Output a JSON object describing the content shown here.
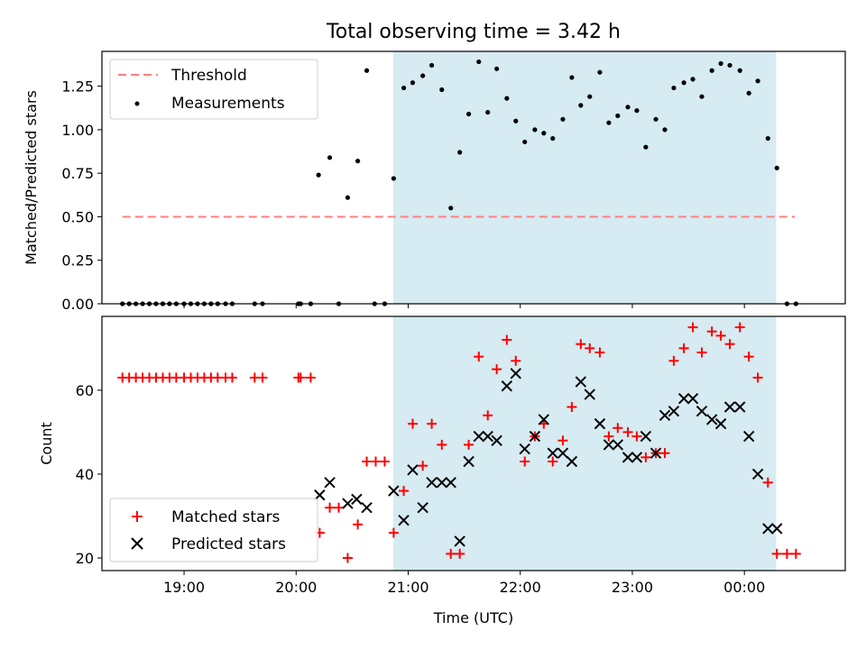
{
  "chart_data": [
    {
      "type": "scatter",
      "title": "Total observing time = 3.42 h",
      "xlabel": "",
      "ylabel": "Matched/Predicted stars",
      "xlim": [
        18.267,
        24.9
      ],
      "ylim": [
        0,
        1.45
      ],
      "yticks": [
        0,
        0.25,
        0.5,
        0.75,
        1.0,
        1.25
      ],
      "ytick_labels": [
        "0.00",
        "0.25",
        "0.50",
        "0.75",
        "1.00",
        "1.25"
      ],
      "xticks": [
        19,
        20,
        21,
        22,
        23,
        24
      ],
      "shaded_span": [
        20.867,
        24.283
      ],
      "threshold": {
        "label": "Threshold",
        "value": 0.5,
        "x": [
          18.45,
          24.45
        ],
        "color": "#ff7f7f"
      },
      "legend": {
        "position": "top-left",
        "entries": [
          "Threshold",
          "Measurements"
        ]
      },
      "series": [
        {
          "name": "Measurements",
          "color": "#000000",
          "marker": "dot",
          "x": [
            18.45,
            18.51,
            18.57,
            18.63,
            18.69,
            18.75,
            18.81,
            18.87,
            18.93,
            19.0,
            19.06,
            19.12,
            19.18,
            19.24,
            19.3,
            19.37,
            19.43,
            19.63,
            19.7,
            20.02,
            20.04,
            20.13,
            20.38,
            20.2,
            20.3,
            20.46,
            20.55,
            20.63,
            20.7,
            20.79,
            20.87,
            20.96,
            21.04,
            21.13,
            21.21,
            21.3,
            21.38,
            21.46,
            21.54,
            21.63,
            21.71,
            21.79,
            21.88,
            21.96,
            22.04,
            22.13,
            22.21,
            22.29,
            22.38,
            22.46,
            22.54,
            22.62,
            22.71,
            22.79,
            22.87,
            22.96,
            23.04,
            23.12,
            23.21,
            23.29,
            23.37,
            23.46,
            23.54,
            23.62,
            23.71,
            23.79,
            23.87,
            23.96,
            24.04,
            24.12,
            24.21,
            24.29,
            24.38,
            24.46
          ],
          "y": [
            0,
            0,
            0,
            0,
            0,
            0,
            0,
            0,
            0,
            0,
            0,
            0,
            0,
            0,
            0,
            0,
            0,
            0,
            0,
            0,
            0,
            0,
            0,
            0.74,
            0.84,
            0.61,
            0.82,
            1.34,
            0,
            0,
            0.72,
            1.24,
            1.27,
            1.31,
            1.37,
            1.23,
            0.55,
            0.87,
            1.09,
            1.39,
            1.1,
            1.35,
            1.18,
            1.05,
            0.93,
            1.0,
            0.98,
            0.95,
            1.06,
            1.3,
            1.14,
            1.19,
            1.33,
            1.04,
            1.08,
            1.13,
            1.11,
            0.9,
            1.06,
            1.0,
            1.24,
            1.27,
            1.29,
            1.19,
            1.34,
            1.38,
            1.37,
            1.34,
            1.21,
            1.28,
            0.95,
            0.78,
            0,
            0
          ]
        }
      ]
    },
    {
      "type": "scatter",
      "title": "",
      "xlabel": "Time (UTC)",
      "ylabel": "Count",
      "xlim": [
        18.267,
        24.9
      ],
      "ylim": [
        17,
        77.6
      ],
      "yticks": [
        20,
        40,
        60
      ],
      "ytick_labels": [
        "20",
        "40",
        "60"
      ],
      "xticks": [
        19,
        20,
        21,
        22,
        23,
        24
      ],
      "xtick_labels": [
        "19:00",
        "20:00",
        "21:00",
        "22:00",
        "23:00",
        "00:00"
      ],
      "shaded_span": [
        20.867,
        24.283
      ],
      "legend": {
        "position": "lower-left",
        "entries": [
          "Matched stars",
          "Predicted stars"
        ]
      },
      "series": [
        {
          "name": "Matched stars",
          "color": "#ff0000",
          "marker": "plus",
          "x": [
            18.45,
            18.51,
            18.57,
            18.63,
            18.69,
            18.75,
            18.81,
            18.87,
            18.93,
            19.0,
            19.06,
            19.12,
            19.18,
            19.24,
            19.3,
            19.37,
            19.43,
            19.63,
            19.7,
            20.02,
            20.04,
            20.13,
            20.21,
            20.3,
            20.38,
            20.46,
            20.55,
            20.63,
            20.71,
            20.79,
            20.87,
            20.96,
            21.04,
            21.13,
            21.21,
            21.3,
            21.38,
            21.46,
            21.54,
            21.63,
            21.71,
            21.79,
            21.88,
            21.96,
            22.04,
            22.13,
            22.21,
            22.29,
            22.38,
            22.46,
            22.54,
            22.62,
            22.71,
            22.79,
            22.87,
            22.96,
            23.04,
            23.12,
            23.21,
            23.29,
            23.37,
            23.46,
            23.54,
            23.62,
            23.71,
            23.79,
            23.87,
            23.96,
            24.04,
            24.12,
            24.21,
            24.29,
            24.38,
            24.46
          ],
          "y": [
            63,
            63,
            63,
            63,
            63,
            63,
            63,
            63,
            63,
            63,
            63,
            63,
            63,
            63,
            63,
            63,
            63,
            63,
            63,
            63,
            63,
            63,
            26,
            32,
            32,
            20,
            28,
            43,
            43,
            43,
            26,
            36,
            52,
            42,
            52,
            47,
            21,
            21,
            47,
            68,
            54,
            65,
            72,
            67,
            43,
            49,
            52,
            43,
            48,
            56,
            71,
            70,
            69,
            49,
            51,
            50,
            49,
            44,
            45,
            45,
            67,
            70,
            75,
            69,
            74,
            73,
            71,
            75,
            68,
            63,
            38,
            21,
            21,
            21
          ]
        },
        {
          "name": "Predicted stars",
          "color": "#000000",
          "marker": "x",
          "x": [
            20.21,
            20.3,
            20.46,
            20.54,
            20.63,
            20.87,
            20.96,
            21.04,
            21.13,
            21.21,
            21.3,
            21.38,
            21.46,
            21.54,
            21.63,
            21.71,
            21.79,
            21.88,
            21.96,
            22.04,
            22.13,
            22.21,
            22.29,
            22.38,
            22.46,
            22.54,
            22.62,
            22.71,
            22.79,
            22.87,
            22.96,
            23.04,
            23.12,
            23.21,
            23.29,
            23.37,
            23.46,
            23.54,
            23.62,
            23.71,
            23.79,
            23.87,
            23.96,
            24.04,
            24.12,
            24.21,
            24.29
          ],
          "y": [
            35,
            38,
            33,
            34,
            32,
            36,
            29,
            41,
            32,
            38,
            38,
            38,
            24,
            43,
            49,
            49,
            48,
            61,
            64,
            46,
            49,
            53,
            45,
            45,
            43,
            62,
            59,
            52,
            47,
            47,
            44,
            44,
            49,
            45,
            54,
            55,
            58,
            58,
            55,
            53,
            52,
            56,
            56,
            49,
            40,
            27,
            27
          ]
        }
      ]
    }
  ]
}
